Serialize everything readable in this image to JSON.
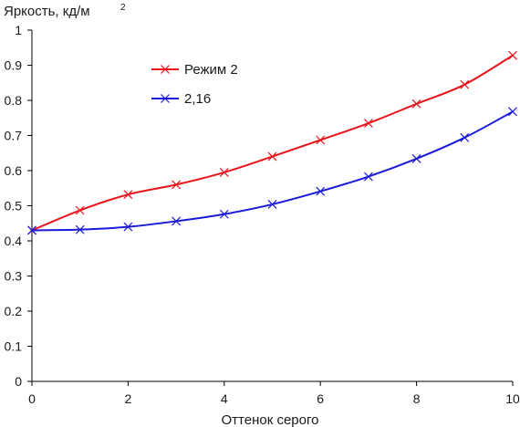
{
  "chart_data": {
    "type": "line",
    "title": "",
    "ylabel": "Яркость, кд/м",
    "ylabel_sup": "2",
    "xlabel": "Оттенок серого",
    "xlim": [
      0,
      10
    ],
    "ylim": [
      0,
      1
    ],
    "x_ticks": [
      0,
      2,
      4,
      6,
      8,
      10
    ],
    "y_ticks": [
      0,
      0.1,
      0.2,
      0.3,
      0.4,
      0.5,
      0.6,
      0.7,
      0.8,
      0.9,
      1
    ],
    "y_tick_labels": [
      "0",
      "0.1",
      "0.2",
      "0.3",
      "0.4",
      "0.5",
      "0.6",
      "0.7",
      "0.8",
      "0.9",
      "1"
    ],
    "x_tick_labels": [
      "0",
      "2",
      "4",
      "6",
      "8",
      "10"
    ],
    "grid": false,
    "legend_position": "upper-center",
    "series": [
      {
        "name": "Режим 2",
        "color": "#e8141c",
        "marker": "x",
        "x": [
          0,
          1,
          2,
          3,
          4,
          5,
          6,
          7,
          8,
          9,
          10
        ],
        "y": [
          0.43,
          0.487,
          0.532,
          0.56,
          0.595,
          0.64,
          0.687,
          0.735,
          0.79,
          0.845,
          0.928
        ]
      },
      {
        "name": "2,16",
        "color": "#1a1ad8",
        "marker": "x",
        "x": [
          0,
          1,
          2,
          3,
          4,
          5,
          6,
          7,
          8,
          9,
          10
        ],
        "y": [
          0.43,
          0.432,
          0.44,
          0.456,
          0.476,
          0.504,
          0.541,
          0.583,
          0.634,
          0.694,
          0.768
        ]
      }
    ]
  }
}
